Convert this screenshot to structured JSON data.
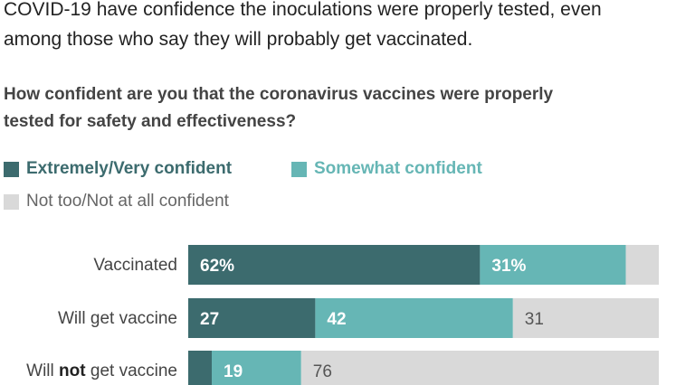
{
  "intro_lines": [
    "COVID-19 have confidence the inoculations were properly tested, even",
    "among those who say they will probably get vaccinated."
  ],
  "question_lines": [
    "How confident are you that the coronavirus vaccines were properly",
    "tested for safety and effectiveness?"
  ],
  "colors": {
    "extremely_very": "#3c6b6e",
    "somewhat": "#66b6b5",
    "not_too": "#d9d9d9"
  },
  "legend": {
    "extremely_very": "Extremely/Very confident",
    "somewhat": "Somewhat confident",
    "not_too": "Not too/Not at all confident"
  },
  "chart_data": {
    "type": "bar",
    "orientation": "horizontal",
    "stacked": true,
    "categories": [
      "Vaccinated",
      "Will get vaccine",
      "Will not get vaccine"
    ],
    "category_parts": [
      [
        "Vaccinated"
      ],
      [
        "Will get vaccine"
      ],
      [
        "Will ",
        "not",
        " get vaccine"
      ]
    ],
    "series": [
      {
        "name": "Extremely/Very confident",
        "values": [
          62,
          27,
          5
        ],
        "labels": [
          "62%",
          "27",
          ""
        ]
      },
      {
        "name": "Somewhat confident",
        "values": [
          31,
          42,
          19
        ],
        "labels": [
          "31%",
          "42",
          "19"
        ]
      },
      {
        "name": "Not too/Not at all confident",
        "values": [
          7,
          31,
          76
        ],
        "labels": [
          "",
          "31",
          "76"
        ]
      }
    ],
    "xlim": [
      0,
      100
    ]
  }
}
